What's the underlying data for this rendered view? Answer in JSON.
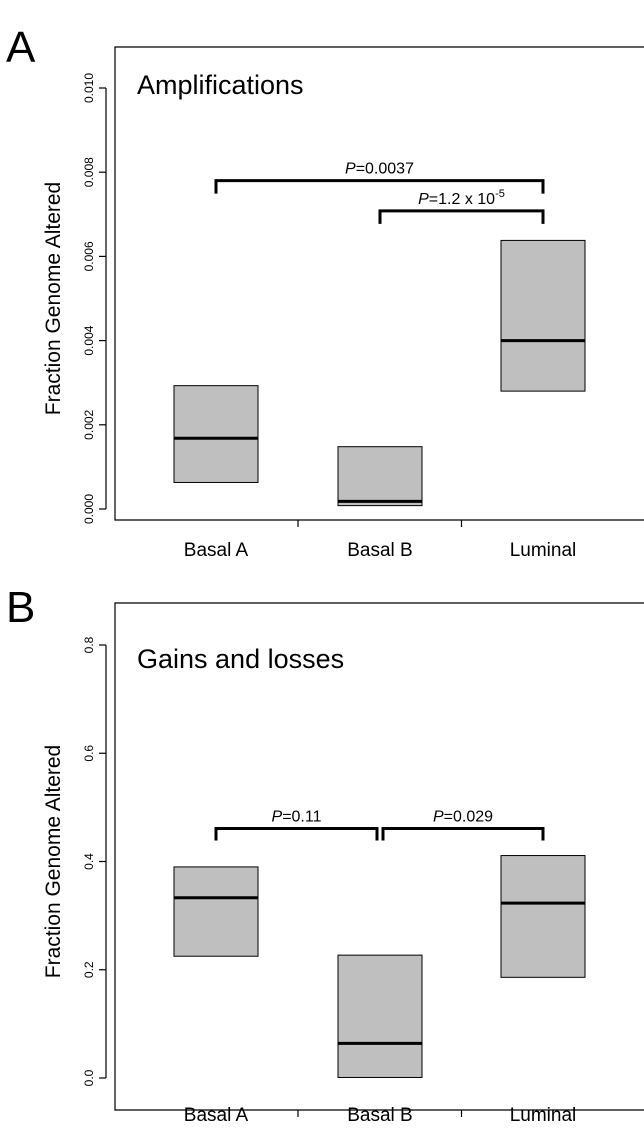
{
  "chart_data": [
    {
      "type": "box",
      "panel_letter": "A",
      "title": "Amplifications",
      "ylabel": "Fraction Genome Altered",
      "ylim": [
        0,
        0.01
      ],
      "yticks": [
        "0.000",
        "0.002",
        "0.004",
        "0.006",
        "0.008",
        "0.010"
      ],
      "ytick_values": [
        0,
        0.002,
        0.004,
        0.006,
        0.008,
        0.01
      ],
      "categories": [
        "Basal A",
        "Basal B",
        "Luminal"
      ],
      "boxes": [
        {
          "category": "Basal A",
          "q1": 0.00063,
          "median": 0.00168,
          "q3": 0.00293
        },
        {
          "category": "Basal B",
          "q1": 8e-05,
          "median": 0.00018,
          "q3": 0.00148
        },
        {
          "category": "Luminal",
          "q1": 0.0028,
          "median": 0.004,
          "q3": 0.00638
        }
      ],
      "comparisons": [
        {
          "from": 0,
          "to": 2,
          "y": 0.0078,
          "p_prefix": "P",
          "p_value": "=0.0037",
          "p_exp": ""
        },
        {
          "from": 1,
          "to": 2,
          "y": 0.00708,
          "p_prefix": "P",
          "p_value": "=1.2 x 10",
          "p_exp": "-5"
        }
      ]
    },
    {
      "type": "box",
      "panel_letter": "B",
      "title": "Gains and losses",
      "ylabel": "Fraction Genome Altered",
      "ylim": [
        0,
        0.8
      ],
      "yticks": [
        "0.0",
        "0.2",
        "0.4",
        "0.6",
        "0.8"
      ],
      "ytick_values": [
        0,
        0.2,
        0.4,
        0.6,
        0.8
      ],
      "categories": [
        "Basal A",
        "Basal B",
        "Luminal"
      ],
      "boxes": [
        {
          "category": "Basal A",
          "q1": 0.225,
          "median": 0.333,
          "q3": 0.39
        },
        {
          "category": "Basal B",
          "q1": 0.001,
          "median": 0.064,
          "q3": 0.227
        },
        {
          "category": "Luminal",
          "q1": 0.186,
          "median": 0.323,
          "q3": 0.411
        }
      ],
      "comparisons": [
        {
          "from": 0,
          "to": 1,
          "y": 0.461,
          "p_prefix": "P",
          "p_value": "=0.11",
          "p_exp": ""
        },
        {
          "from": 1,
          "to": 2,
          "y": 0.461,
          "p_prefix": "P",
          "p_value": "=0.029",
          "p_exp": ""
        }
      ]
    }
  ],
  "colors": {
    "box_fill": "#bfbfbf",
    "box_stroke": "#000000",
    "median": "#000000",
    "axis": "#000000"
  }
}
